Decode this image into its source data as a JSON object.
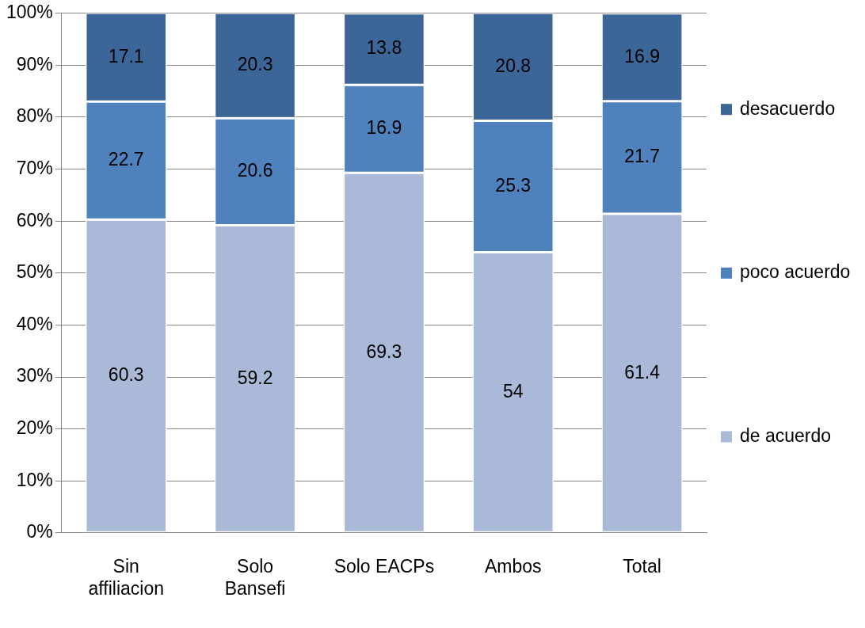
{
  "chart_data": {
    "type": "bar",
    "stacked": true,
    "categories": [
      "Sin affiliacion",
      "Solo Bansefi",
      "Solo EACPs",
      "Ambos",
      "Total"
    ],
    "series": [
      {
        "name": "de acuerdo",
        "color": "#aab9d8",
        "values": [
          60.3,
          59.2,
          69.3,
          54,
          61.4
        ]
      },
      {
        "name": "poco acuerdo",
        "color": "#4f81bd",
        "values": [
          22.7,
          20.6,
          16.9,
          25.3,
          21.7
        ]
      },
      {
        "name": "desacuerdo",
        "color": "#3d6698",
        "values": [
          17.1,
          20.3,
          13.8,
          20.8,
          16.9
        ]
      }
    ],
    "ylim": [
      0,
      100
    ],
    "yticks": [
      {
        "value": 0,
        "label": "0%"
      },
      {
        "value": 10,
        "label": "10%"
      },
      {
        "value": 20,
        "label": "20%"
      },
      {
        "value": 30,
        "label": "30%"
      },
      {
        "value": 40,
        "label": "40%"
      },
      {
        "value": 50,
        "label": "50%"
      },
      {
        "value": 60,
        "label": "60%"
      },
      {
        "value": 70,
        "label": "70%"
      },
      {
        "value": 80,
        "label": "80%"
      },
      {
        "value": 90,
        "label": "90%"
      },
      {
        "value": 100,
        "label": "100%"
      }
    ],
    "grid": "y",
    "legend": "right",
    "data_labels": true
  }
}
